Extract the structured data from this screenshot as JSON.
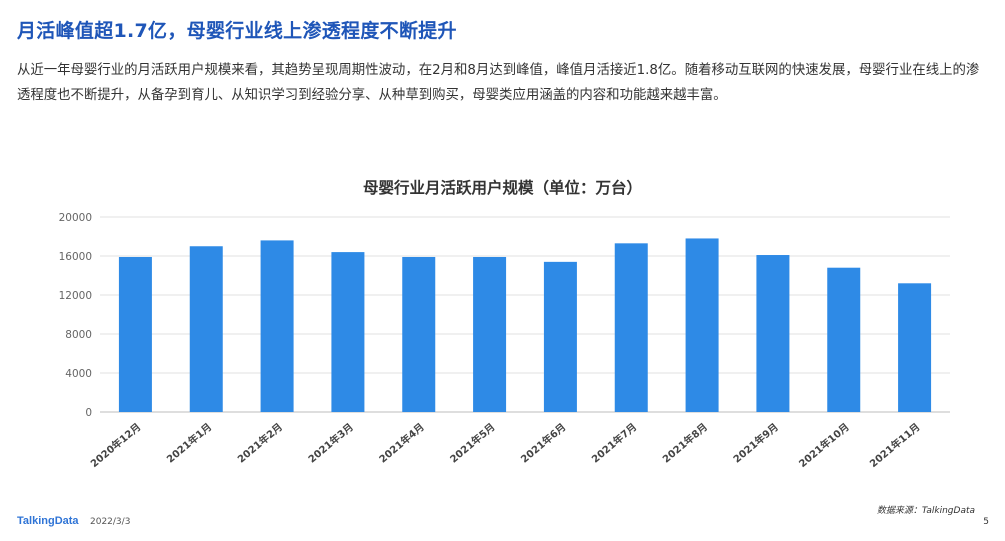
{
  "page": {
    "title": "月活峰值超1.7亿，母婴行业线上渗透程度不断提升",
    "description": "从近一年母婴行业的月活跃用户规模来看，其趋势呈现周期性波动，在2月和8月达到峰值，峰值月活接近1.8亿。随着移动互联网的快速发展，母婴行业在线上的渗透程度也不断提升，从备孕到育儿、从知识学习到经验分享、从种草到购买，母婴类应用涵盖的内容和功能越来越丰富。",
    "source": "数据来源：TalkingData",
    "brand": "TalkingData",
    "date": "2022/3/3",
    "page_number": "5"
  },
  "chart_data": {
    "type": "bar",
    "title": "母婴行业月活跃用户规模（单位：万台）",
    "xlabel": "",
    "ylabel": "",
    "categories": [
      "2020年12月",
      "2021年1月",
      "2021年2月",
      "2021年3月",
      "2021年4月",
      "2021年5月",
      "2021年6月",
      "2021年7月",
      "2021年8月",
      "2021年9月",
      "2021年10月",
      "2021年11月"
    ],
    "values": [
      15900,
      17000,
      17600,
      16400,
      15900,
      15900,
      15400,
      17300,
      17800,
      16100,
      14800,
      13200
    ],
    "ylim": [
      0,
      20000
    ],
    "yticks": [
      0,
      4000,
      8000,
      12000,
      16000,
      20000
    ],
    "grid": true,
    "bar_color": "#2e8ae6",
    "grid_color": "#e2e2e2"
  }
}
